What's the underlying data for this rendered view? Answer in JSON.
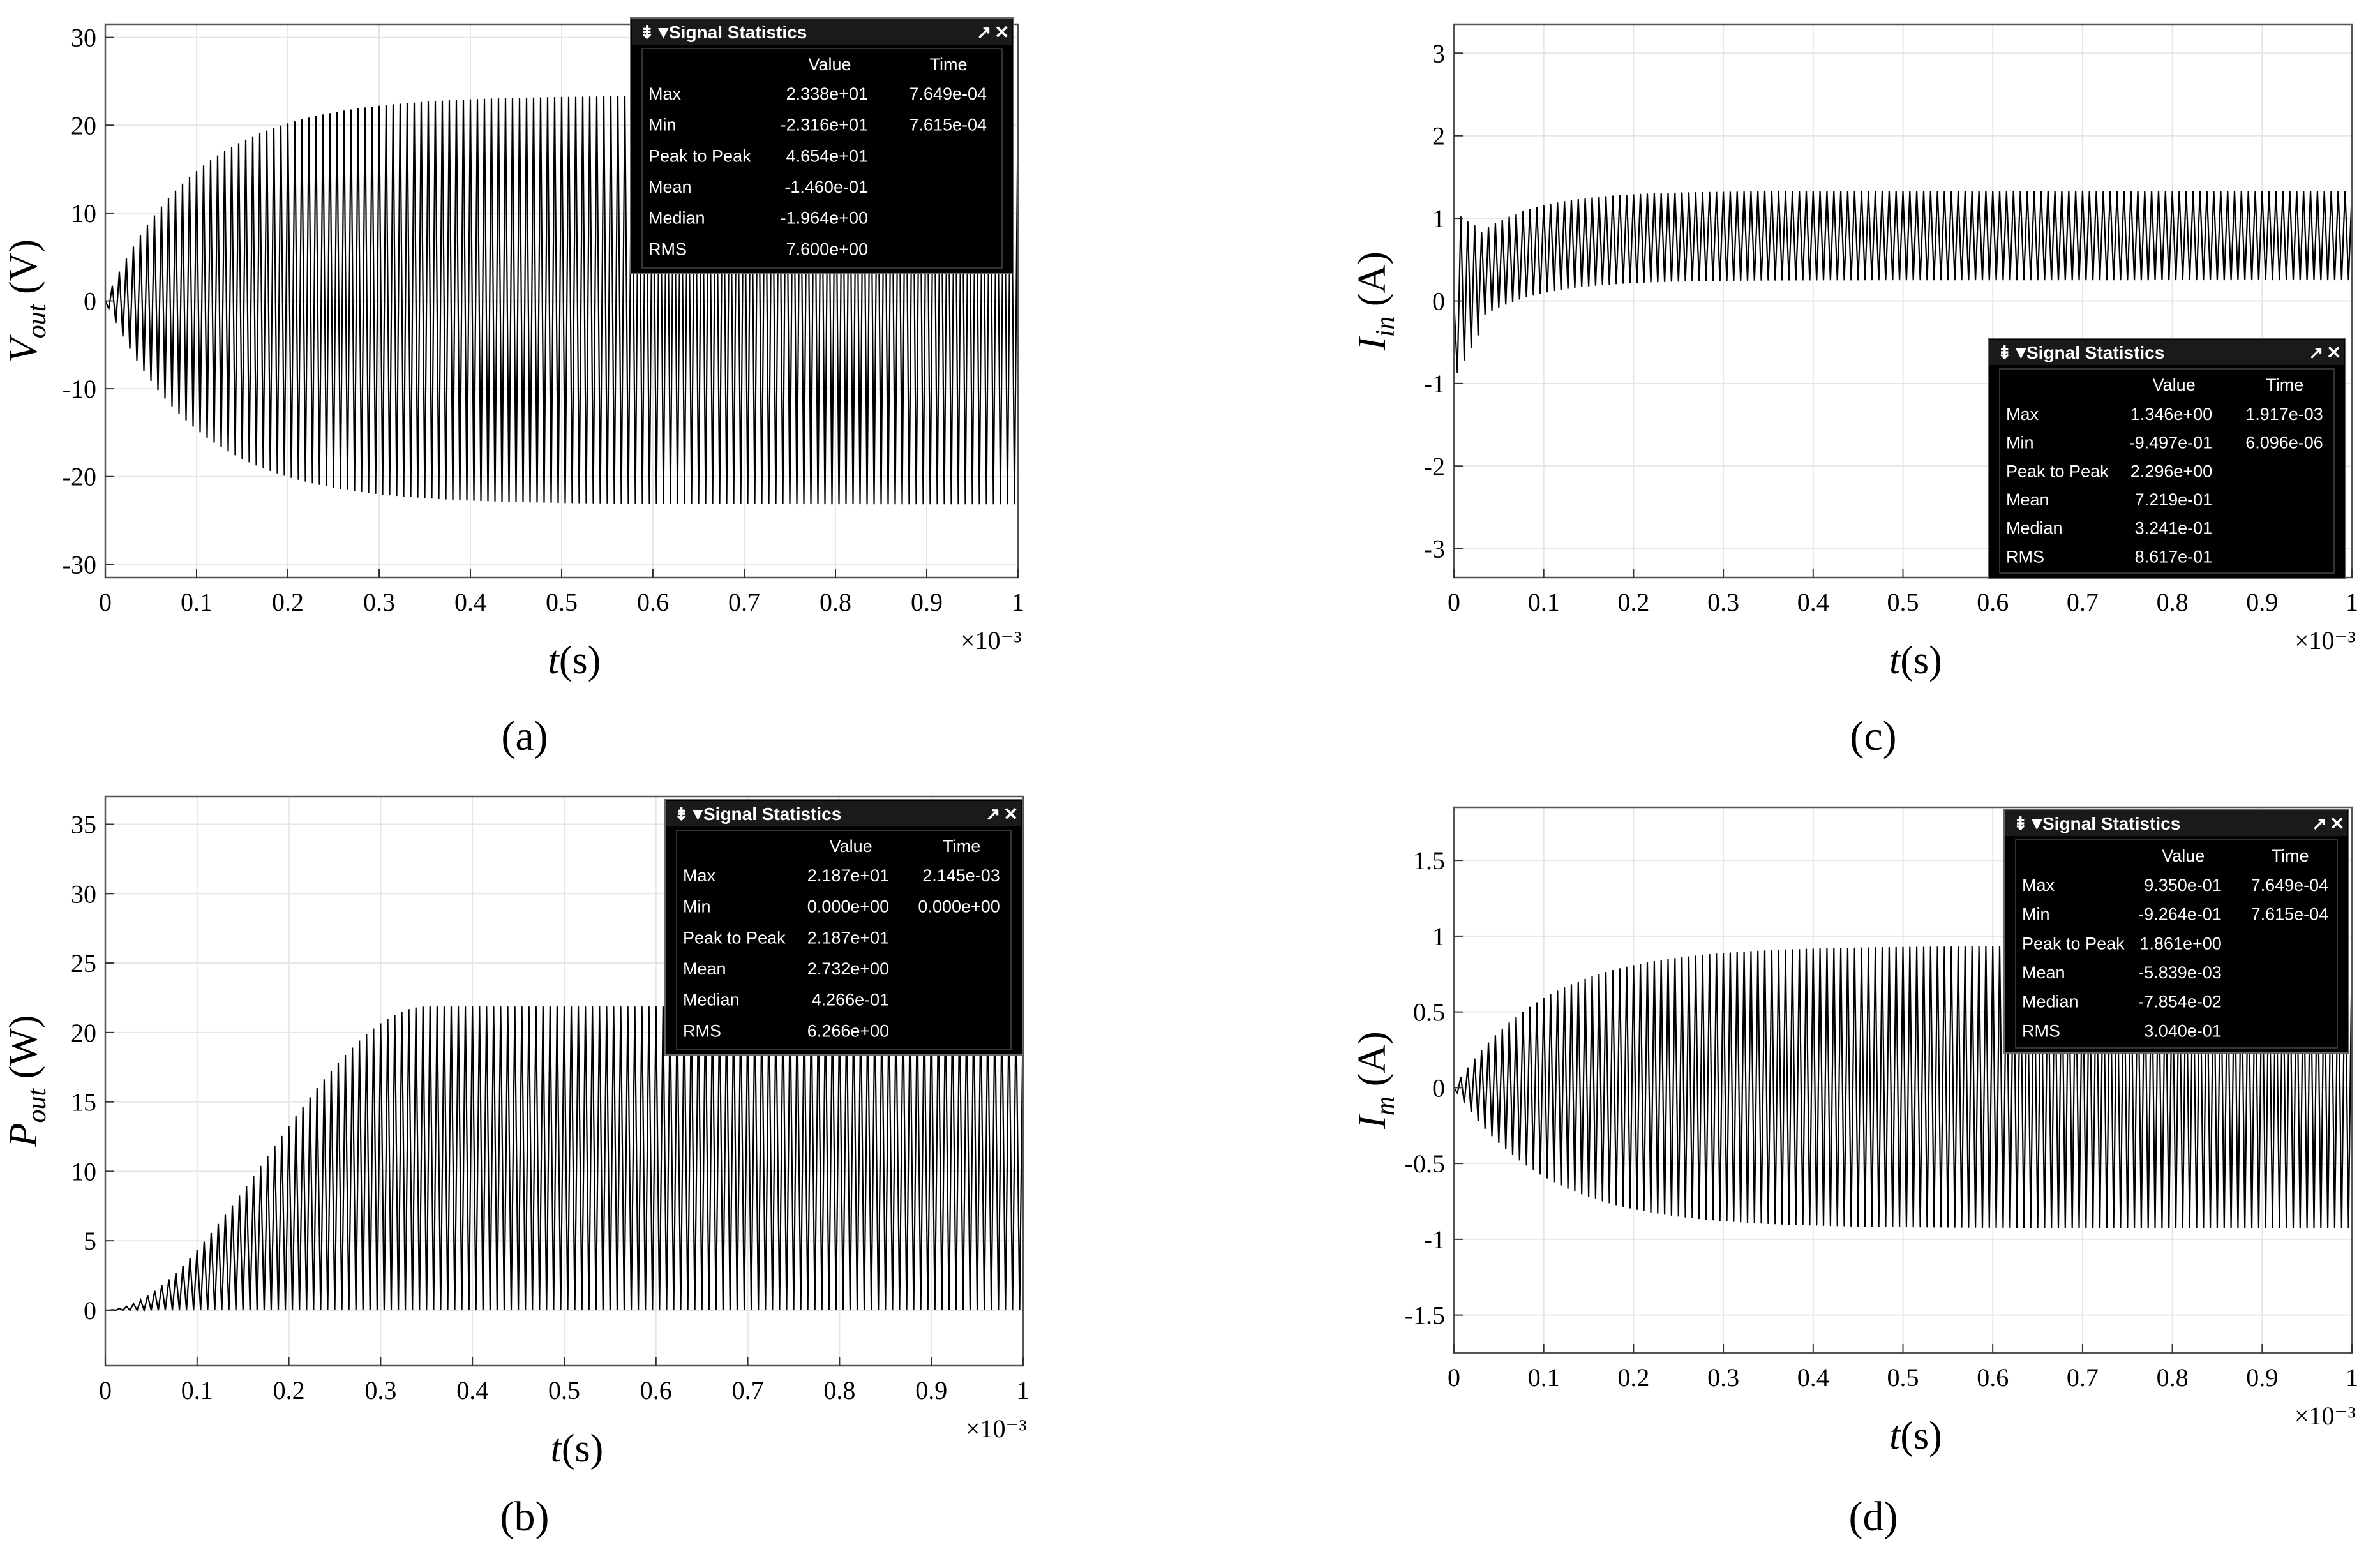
{
  "figure": {
    "captions": [
      "(a)",
      "(b)",
      "(c)",
      "(d)"
    ],
    "colors": {
      "trace": "#000000",
      "grid": "#e6e6e6",
      "stat_bg": "#000000",
      "stat_header": "#1a1a1a",
      "stat_text": "#ffffff"
    }
  },
  "chart_data": [
    {
      "type": "line",
      "panel": "a",
      "caption": "(a)",
      "ylabel": {
        "base": "V",
        "sub": "out",
        "unit": " (V)"
      },
      "xlabel": {
        "base": "t",
        "unit": "(s)"
      },
      "x_multiplier": "×10⁻³",
      "xlim": [
        0,
        1
      ],
      "ylim": [
        -31.5,
        31.5
      ],
      "xticks": [
        "0",
        "0.1",
        "0.2",
        "0.3",
        "0.4",
        "0.5",
        "0.6",
        "0.7",
        "0.8",
        "0.9",
        "1"
      ],
      "yticks": [
        "-30",
        "-20",
        "-10",
        "0",
        "10",
        "20",
        "30"
      ],
      "ytick_values": [
        -30,
        -20,
        -10,
        0,
        10,
        20,
        30
      ],
      "grid": true,
      "waveform": {
        "shape": "sine",
        "amplitude_max": 23.38,
        "amplitude_min": -23.16,
        "rise": "exponential",
        "settle_time_ms": 0.3,
        "cycles": 130
      },
      "signal_statistics": {
        "title": "Signal Statistics",
        "columns": [
          "Value",
          "Time"
        ],
        "rows": [
          {
            "label": "Max",
            "value": "2.338e+01",
            "time": "7.649e-04"
          },
          {
            "label": "Min",
            "value": "-2.316e+01",
            "time": "7.615e-04"
          },
          {
            "label": "Peak to Peak",
            "value": "4.654e+01",
            "time": ""
          },
          {
            "label": "Mean",
            "value": "-1.460e-01",
            "time": ""
          },
          {
            "label": "Median",
            "value": "-1.964e+00",
            "time": ""
          },
          {
            "label": "RMS",
            "value": "7.600e+00",
            "time": ""
          }
        ]
      }
    },
    {
      "type": "line",
      "panel": "b",
      "caption": "(b)",
      "ylabel": {
        "base": "P",
        "sub": "out",
        "unit": " (W)"
      },
      "xlabel": {
        "base": "t",
        "unit": "(s)"
      },
      "x_multiplier": "×10⁻³",
      "xlim": [
        0,
        1
      ],
      "ylim": [
        -4,
        37
      ],
      "xticks": [
        "0",
        "0.1",
        "0.2",
        "0.3",
        "0.4",
        "0.5",
        "0.6",
        "0.7",
        "0.8",
        "0.9",
        "1"
      ],
      "yticks": [
        "0",
        "5",
        "10",
        "15",
        "20",
        "25",
        "30",
        "35"
      ],
      "ytick_values": [
        0,
        5,
        10,
        15,
        20,
        25,
        30,
        35
      ],
      "grid": true,
      "waveform": {
        "shape": "sine-squared",
        "amplitude_max": 21.87,
        "amplitude_min": 0,
        "rise": "sigmoid",
        "settle_time_ms": 0.35,
        "cycles": 130
      },
      "signal_statistics": {
        "title": "Signal Statistics",
        "columns": [
          "Value",
          "Time"
        ],
        "rows": [
          {
            "label": "Max",
            "value": "2.187e+01",
            "time": "2.145e-03"
          },
          {
            "label": "Min",
            "value": "0.000e+00",
            "time": "0.000e+00"
          },
          {
            "label": "Peak to Peak",
            "value": "2.187e+01",
            "time": ""
          },
          {
            "label": "Mean",
            "value": "2.732e+00",
            "time": ""
          },
          {
            "label": "Median",
            "value": "4.266e-01",
            "time": ""
          },
          {
            "label": "RMS",
            "value": "6.266e+00",
            "time": ""
          }
        ]
      }
    },
    {
      "type": "line",
      "panel": "c",
      "caption": "(c)",
      "ylabel": {
        "base": "I",
        "sub": "in",
        "unit": " (A)"
      },
      "xlabel": {
        "base": "t",
        "unit": "(s)"
      },
      "x_multiplier": "×10⁻³",
      "xlim": [
        0,
        1
      ],
      "ylim": [
        -3.35,
        3.35
      ],
      "xticks": [
        "0",
        "0.1",
        "0.2",
        "0.3",
        "0.4",
        "0.5",
        "0.6",
        "0.7",
        "0.8",
        "0.9",
        "1"
      ],
      "yticks": [
        "-3",
        "-2",
        "-1",
        "0",
        "1",
        "2",
        "3"
      ],
      "ytick_values": [
        -3,
        -2,
        -1,
        0,
        1,
        2,
        3
      ],
      "grid": true,
      "waveform": {
        "shape": "offset-oscillation",
        "max": 1.346,
        "min": -0.9497,
        "steady_high": 1.33,
        "steady_low": 0.25,
        "rise": "exponential",
        "settle_time_ms": 0.2,
        "cycles": 130
      },
      "signal_statistics": {
        "title": "Signal Statistics",
        "columns": [
          "Value",
          "Time"
        ],
        "rows": [
          {
            "label": "Max",
            "value": "1.346e+00",
            "time": "1.917e-03"
          },
          {
            "label": "Min",
            "value": "-9.497e-01",
            "time": "6.096e-06"
          },
          {
            "label": "Peak to Peak",
            "value": "2.296e+00",
            "time": ""
          },
          {
            "label": "Mean",
            "value": "7.219e-01",
            "time": ""
          },
          {
            "label": "Median",
            "value": "3.241e-01",
            "time": ""
          },
          {
            "label": "RMS",
            "value": "8.617e-01",
            "time": ""
          }
        ]
      }
    },
    {
      "type": "line",
      "panel": "d",
      "caption": "(d)",
      "ylabel": {
        "base": "I",
        "sub": "m",
        "unit": " (A)"
      },
      "xlabel": {
        "base": "t",
        "unit": "(s)"
      },
      "x_multiplier": "×10⁻³",
      "xlim": [
        0,
        1
      ],
      "ylim": [
        -1.75,
        1.85
      ],
      "xticks": [
        "0",
        "0.1",
        "0.2",
        "0.3",
        "0.4",
        "0.5",
        "0.6",
        "0.7",
        "0.8",
        "0.9",
        "1"
      ],
      "yticks": [
        "-1.5",
        "-1",
        "-0.5",
        "0",
        "0.5",
        "1",
        "1.5"
      ],
      "ytick_values": [
        -1.5,
        -1,
        -0.5,
        0,
        0.5,
        1,
        1.5
      ],
      "grid": true,
      "waveform": {
        "shape": "sine",
        "amplitude_max": 0.935,
        "amplitude_min": -0.9264,
        "rise": "exponential",
        "settle_time_ms": 0.3,
        "cycles": 130
      },
      "signal_statistics": {
        "title": "Signal Statistics",
        "columns": [
          "Value",
          "Time"
        ],
        "rows": [
          {
            "label": "Max",
            "value": "9.350e-01",
            "time": "7.649e-04"
          },
          {
            "label": "Min",
            "value": "-9.264e-01",
            "time": "7.615e-04"
          },
          {
            "label": "Peak to Peak",
            "value": "1.861e+00",
            "time": ""
          },
          {
            "label": "Mean",
            "value": "-5.839e-03",
            "time": ""
          },
          {
            "label": "Median",
            "value": "-7.854e-02",
            "time": ""
          },
          {
            "label": "RMS",
            "value": "3.040e-01",
            "time": ""
          }
        ]
      }
    }
  ]
}
